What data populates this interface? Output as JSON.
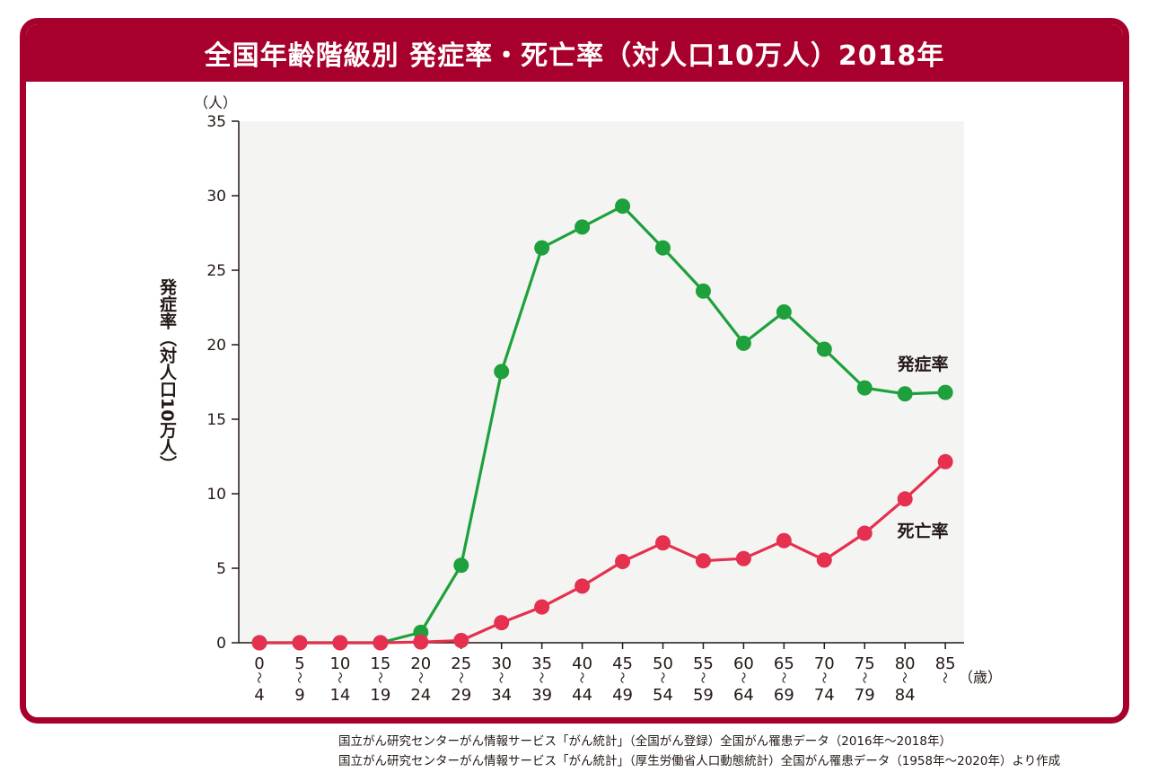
{
  "title": "全国年齢階級別 発症率・死亡率（対人口10万人）2018年",
  "colors": {
    "frame": "#a8002c",
    "incidence": "#1ea03c",
    "mortality": "#e5304f",
    "plot_bg": "#f4f5f3"
  },
  "chart_data": {
    "type": "line",
    "title": "全国年齢階級別 発症率・死亡率（対人口10万人）2018年",
    "ylabel": "発症率（対人口10万人）",
    "y_unit": "（人）",
    "x_unit": "（歳）",
    "ylim": [
      0,
      35
    ],
    "yticks": [
      0,
      5,
      10,
      15,
      20,
      25,
      30,
      35
    ],
    "categories": [
      {
        "from": "0",
        "to": "4"
      },
      {
        "from": "5",
        "to": "9"
      },
      {
        "from": "10",
        "to": "14"
      },
      {
        "from": "15",
        "to": "19"
      },
      {
        "from": "20",
        "to": "24"
      },
      {
        "from": "25",
        "to": "29"
      },
      {
        "from": "30",
        "to": "34"
      },
      {
        "from": "35",
        "to": "39"
      },
      {
        "from": "40",
        "to": "44"
      },
      {
        "from": "45",
        "to": "49"
      },
      {
        "from": "50",
        "to": "54"
      },
      {
        "from": "55",
        "to": "59"
      },
      {
        "from": "60",
        "to": "64"
      },
      {
        "from": "65",
        "to": "69"
      },
      {
        "from": "70",
        "to": "74"
      },
      {
        "from": "75",
        "to": "79"
      },
      {
        "from": "80",
        "to": "84"
      },
      {
        "from": "85",
        "to": ""
      }
    ],
    "series": [
      {
        "name": "発症率",
        "color": "#1ea03c",
        "values": [
          0,
          0,
          0,
          0,
          0.7,
          5.2,
          18.2,
          26.5,
          27.9,
          29.3,
          26.5,
          23.6,
          20.1,
          22.2,
          19.7,
          17.1,
          16.7,
          16.8
        ]
      },
      {
        "name": "死亡率",
        "color": "#e5304f",
        "values": [
          0,
          0,
          0,
          0,
          0.05,
          0.15,
          1.35,
          2.4,
          3.8,
          5.45,
          6.7,
          5.5,
          5.65,
          6.85,
          5.55,
          7.35,
          9.65,
          12.15
        ]
      }
    ],
    "grid": false,
    "legend": "inline-right"
  },
  "footnotes": [
    "国立がん研究センターがん情報サービス「がん統計」（全国がん登録）全国がん罹患データ（2016年～2018年）",
    "国立がん研究センターがん情報サービス「がん統計」（厚生労働省人口動態統計）全国がん罹患データ（1958年～2020年）より作成"
  ]
}
